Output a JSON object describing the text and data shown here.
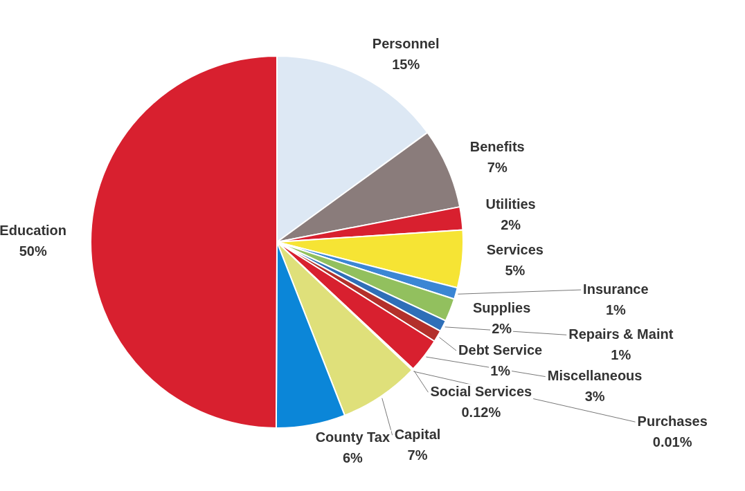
{
  "chart_data": {
    "type": "pie",
    "categories": [
      "Personnel",
      "Benefits",
      "Utilities",
      "Services",
      "Insurance",
      "Supplies",
      "Repairs & Maint",
      "Debt Service",
      "Miscellaneous",
      "Social Services",
      "Purchases",
      "Capital",
      "County Tax",
      "Education"
    ],
    "values": [
      15,
      7,
      2,
      5,
      1,
      2,
      1,
      1,
      3,
      0.12,
      0.01,
      7,
      6,
      50
    ],
    "value_labels": [
      "15%",
      "7%",
      "2%",
      "5%",
      "1%",
      "2%",
      "1%",
      "1%",
      "3%",
      "0.12%",
      "0.01%",
      "7%",
      "6%",
      "50%"
    ],
    "colors": [
      "#dde8f4",
      "#8a7c7b",
      "#d8202f",
      "#f6e434",
      "#3b86d4",
      "#92c05e",
      "#2f6fb8",
      "#b3302b",
      "#d8202f",
      "#5a7fa8",
      "#c9d46a",
      "#dfe07a",
      "#0b86d8",
      "#d8202f"
    ],
    "legend": false
  }
}
